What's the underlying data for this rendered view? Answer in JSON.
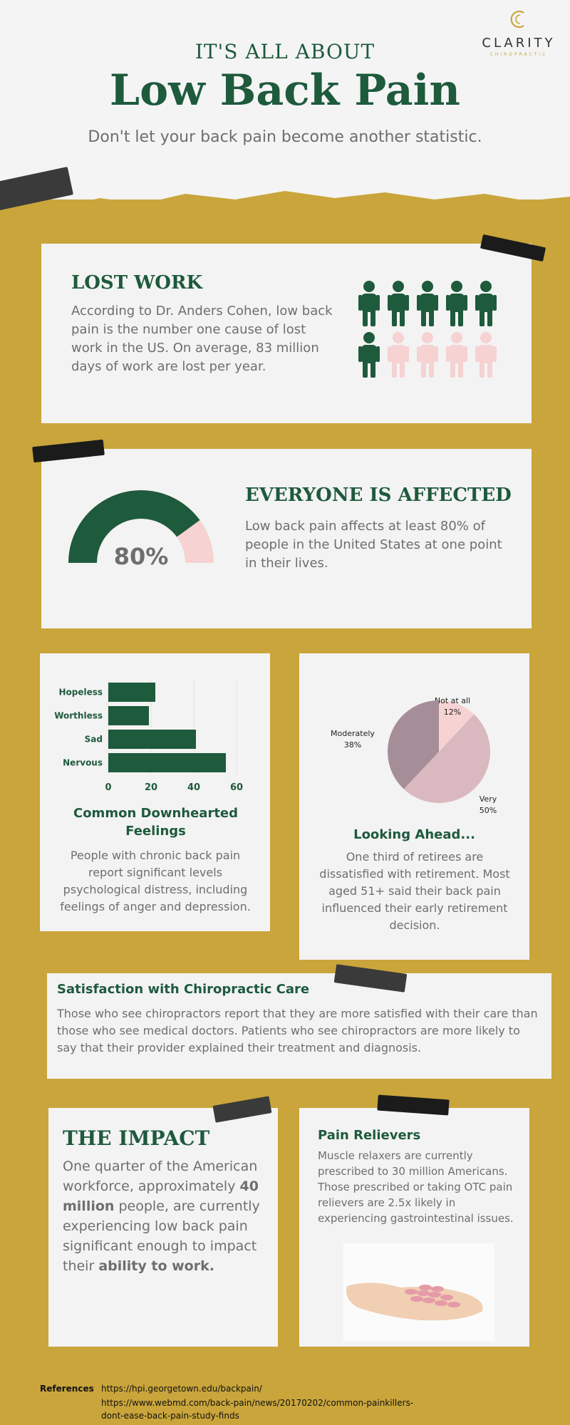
{
  "brand": {
    "name": "CLARITY",
    "sub": "CHIROPRACTIC",
    "logo_icon": "c-swirl-icon",
    "color": "#c9a53b"
  },
  "header": {
    "kicker": "IT'S ALL ABOUT",
    "title": "Low Back Pain",
    "subtitle": "Don't let your back pain become another statistic."
  },
  "colors": {
    "green": "#1e5a3c",
    "gold": "#c9a53b",
    "pink": "#f6d2d2",
    "text": "#6e6e6e"
  },
  "lost_work": {
    "title": "LOST WORK",
    "text": "According to Dr. Anders Cohen, low back pain is the number one cause of lost work in the US. On average, 83 million days of work are lost per year.",
    "people_filled": 6,
    "people_total": 10
  },
  "affected": {
    "title": "EVERYONE IS AFFECTED",
    "percent_label": "80%",
    "percent": 80,
    "text": "Low back pain affects at least 80% of people in the United States at one point in their lives."
  },
  "feelings": {
    "title": "Common Downhearted Feelings",
    "text": "People with chronic back pain report significant levels psychological distress, including feelings of anger and depression."
  },
  "ahead": {
    "title": "Looking Ahead...",
    "text": "One third of retirees are dissatisfied with retirement. Most aged 51+ said their back pain influenced their early retirement decision."
  },
  "chart_data": [
    {
      "type": "bar",
      "orientation": "horizontal",
      "categories": [
        "Hopeless",
        "Worthless",
        "Sad",
        "Nervous"
      ],
      "values": [
        22,
        19,
        41,
        55
      ],
      "xticks": [
        "0",
        "20",
        "40",
        "60"
      ],
      "xlim": [
        0,
        60
      ],
      "grid": true
    },
    {
      "type": "pie",
      "labels": [
        "Not at all",
        "Very",
        "Moderately"
      ],
      "values": [
        12,
        50,
        38
      ],
      "value_labels": [
        "12%",
        "50%",
        "38%"
      ],
      "colors": [
        "#f6d2d2",
        "#d9b9bf",
        "#a58e98"
      ]
    }
  ],
  "satisfaction": {
    "title": "Satisfaction with Chiropractic Care",
    "text": "Those who see chiropractors report that they are more satisfied with their care than those who see medical doctors. Patients who see chiropractors are more likely to say that their provider explained their treatment and diagnosis."
  },
  "impact": {
    "title": "THE IMPACT",
    "text_1": "One quarter of the American workforce, approximately ",
    "bold_1": "40 million",
    "text_2": " people, are currently experiencing low back pain significant enough to impact their ",
    "bold_2": "ability to work."
  },
  "relievers": {
    "title": "Pain Relievers",
    "text": "Muscle relaxers are currently prescribed to 30 million Americans. Those prescribed or taking OTC pain relievers are 2.5x likely in experiencing gastrointestinal issues."
  },
  "references": {
    "label": "References",
    "links": [
      "https://hpi.georgetown.edu/backpain/",
      "https://www.webmd.com/back-pain/news/20170202/common-painkillers-",
      "dont-ease-back-pain-study-finds"
    ]
  }
}
